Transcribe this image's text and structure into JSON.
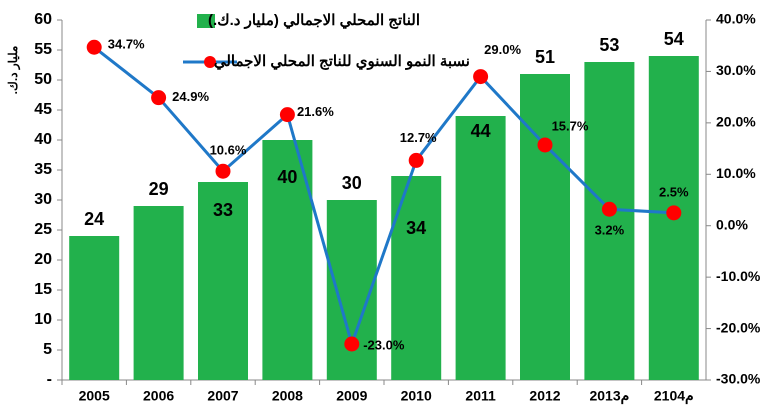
{
  "chart_data": {
    "type": "bar-line",
    "y_label": "مليار د.ك.",
    "categories": [
      "2005",
      "2006",
      "2007",
      "2008",
      "2009",
      "2010",
      "2011",
      "2012",
      "2013م",
      "2104م"
    ],
    "series": [
      {
        "name": "الناتج المحلي الاجمالي (مليار د.ك.)",
        "type": "bar",
        "color": "#22b14c",
        "values": [
          24,
          29,
          33,
          40,
          30,
          34,
          44,
          51,
          53,
          54
        ]
      },
      {
        "name": "نسبة النمو السنوي للناتج المحلي الاجمالي",
        "type": "line",
        "axis": "y2",
        "color": "#1f78c8",
        "marker_color": "#ff0000",
        "values": [
          34.7,
          24.9,
          10.6,
          21.6,
          -23.0,
          12.7,
          29.0,
          15.7,
          3.2,
          2.5
        ],
        "value_labels": [
          "34.7%",
          "24.9%",
          "10.6%",
          "21.6%",
          "-23.0%",
          "12.7%",
          "29.0%",
          "15.7%",
          "3.2%",
          "2.5%"
        ]
      }
    ],
    "ylim": [
      0,
      60
    ],
    "yticks": [
      {
        "value": 0,
        "label": "-"
      },
      5,
      10,
      15,
      20,
      25,
      30,
      35,
      40,
      45,
      50,
      55,
      60
    ],
    "y2lim": [
      -30,
      40
    ],
    "y2ticks": [
      {
        "value": -30,
        "label": "-30.0%"
      },
      {
        "value": -20,
        "label": "-20.0%"
      },
      {
        "value": -10,
        "label": "-10.0%"
      },
      {
        "value": 0,
        "label": "0.0%"
      },
      {
        "value": 10,
        "label": "10.0%"
      },
      {
        "value": 20,
        "label": "20.0%"
      },
      {
        "value": 30,
        "label": "30.0%"
      },
      {
        "value": 40,
        "label": "40.0%"
      }
    ]
  }
}
